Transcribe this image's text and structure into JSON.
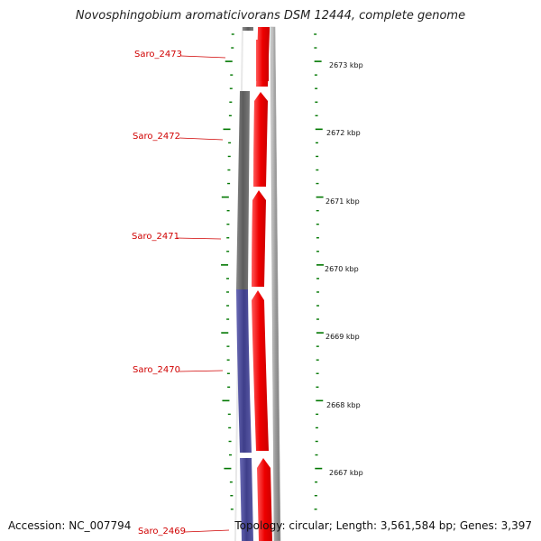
{
  "title": "Novosphingobium aromaticivorans DSM 12444, complete genome",
  "accession": "Accession: NC_007794",
  "topology": "Topology: circular; Length: 3,561,584 bp; Genes: 3,397",
  "scale_unit": "kbp",
  "genes": [
    {
      "name": "Saro_2473",
      "strand": "forward"
    },
    {
      "name": "Saro_2472",
      "strand": "forward"
    },
    {
      "name": "Saro_2471",
      "strand": "forward"
    },
    {
      "name": "Saro_2470",
      "strand": "forward"
    },
    {
      "name": "Saro_2469",
      "strand": "forward"
    }
  ],
  "kbp_ticks": [
    "2673 kbp",
    "2672 kbp",
    "2671 kbp",
    "2670 kbp",
    "2669 kbp",
    "2668 kbp",
    "2667 kbp"
  ],
  "colors": {
    "forward_cds": "#ff0000",
    "gene_label": "#d00000",
    "grey_feature": "#6a6a6a",
    "blue_feature": "#4a4a9a",
    "backbone": "#888888",
    "tick": "#007700"
  }
}
